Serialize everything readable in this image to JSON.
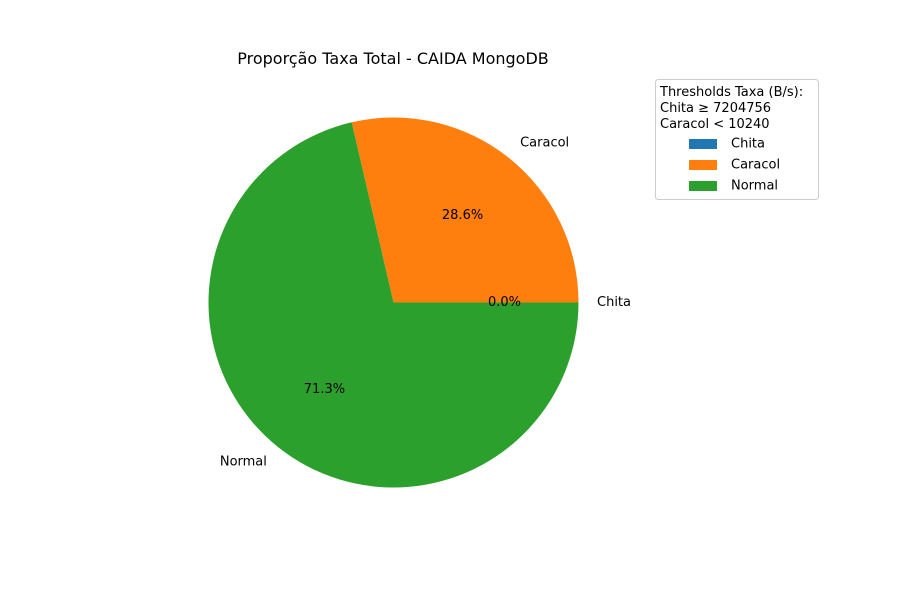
{
  "chart_data": {
    "type": "pie",
    "title": "Proporção Taxa Total - CAIDA MongoDB",
    "categories": [
      "Chita",
      "Caracol",
      "Normal"
    ],
    "values": [
      0.0,
      28.6,
      71.3
    ],
    "value_labels": [
      "0.0%",
      "28.6%",
      "71.3%"
    ],
    "colors": [
      "#1f77b4",
      "#ff7f0e",
      "#2ca02c"
    ],
    "legend": {
      "placement": "top-right",
      "title_lines": [
        "Thresholds Taxa (B/s):",
        "Chita ≥ 7204756",
        "Caracol < 10240"
      ],
      "entries": [
        "Chita",
        "Caracol",
        "Normal"
      ]
    }
  }
}
